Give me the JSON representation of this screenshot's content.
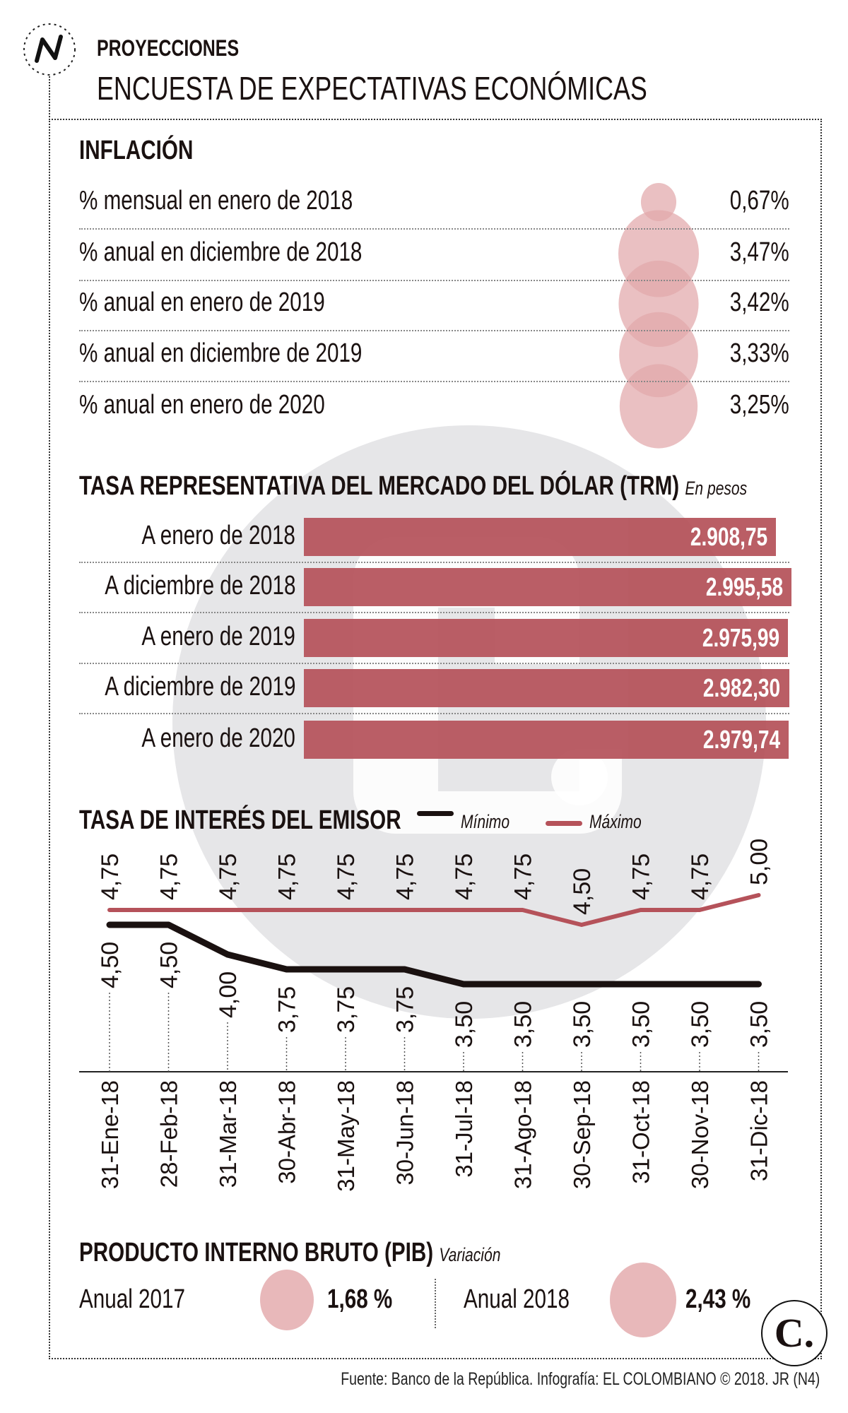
{
  "header": {
    "kicker": "PROYECCIONES",
    "title": "ENCUESTA DE EXPECTATIVAS ECONÓMICAS",
    "logo_icon": "n-logo-icon"
  },
  "colors": {
    "bubble": "#e2a7aa",
    "bar": "#b5525a",
    "max_line": "#b5525a",
    "min_line": "#1a1110",
    "watermark": "#e6e6e8"
  },
  "inflation": {
    "title": "INFLACIÓN",
    "rows": [
      {
        "label": "% mensual en enero de 2018",
        "value": 0.67,
        "display": "0,67%"
      },
      {
        "label": "% anual en diciembre de 2018",
        "value": 3.47,
        "display": "3,47%"
      },
      {
        "label": "% anual en enero de 2019",
        "value": 3.42,
        "display": "3,42%"
      },
      {
        "label": "% anual en diciembre de 2019",
        "value": 3.33,
        "display": "3,33%"
      },
      {
        "label": "% anual en enero de 2020",
        "value": 3.25,
        "display": "3,25%"
      }
    ]
  },
  "trm": {
    "title": "TASA REPRESENTATIVA DEL MERCADO DEL DÓLAR (TRM)",
    "unit": "En pesos",
    "rows": [
      {
        "label": "A enero de 2018",
        "value": 2908.75,
        "display": "2.908,75"
      },
      {
        "label": "A diciembre de 2018",
        "value": 2995.58,
        "display": "2.995,58"
      },
      {
        "label": "A enero de 2019",
        "value": 2975.99,
        "display": "2.975,99"
      },
      {
        "label": "A diciembre de 2019",
        "value": 2982.3,
        "display": "2.982,30"
      },
      {
        "label": "A enero de 2020",
        "value": 2979.74,
        "display": "2.979,74"
      }
    ]
  },
  "chart_data": {
    "type": "line",
    "title": "TASA DE INTERÉS DEL EMISOR",
    "categories": [
      "31-Ene-18",
      "28-Feb-18",
      "31-Mar-18",
      "30-Abr-18",
      "31-May-18",
      "30-Jun-18",
      "31-Jul-18",
      "31-Ago-18",
      "30-Sep-18",
      "31-Oct-18",
      "30-Nov-18",
      "31-Dic-18"
    ],
    "series": [
      {
        "name": "Mínimo",
        "color": "#1a1110",
        "values": [
          4.5,
          4.5,
          4.0,
          3.75,
          3.75,
          3.75,
          3.5,
          3.5,
          3.5,
          3.5,
          3.5,
          3.5
        ],
        "labels": [
          "4,50",
          "4,50",
          "4,00",
          "3,75",
          "3,75",
          "3,75",
          "3,50",
          "3,50",
          "3,50",
          "3,50",
          "3,50",
          "3,50"
        ]
      },
      {
        "name": "Máximo",
        "color": "#b5525a",
        "values": [
          4.75,
          4.75,
          4.75,
          4.75,
          4.75,
          4.75,
          4.75,
          4.75,
          4.5,
          4.75,
          4.75,
          5.0
        ],
        "labels": [
          "4,75",
          "4,75",
          "4,75",
          "4,75",
          "4,75",
          "4,75",
          "4,75",
          "4,75",
          "4,50",
          "4,75",
          "4,75",
          "5,00"
        ]
      }
    ],
    "legend": "top",
    "grid": false
  },
  "pib": {
    "title": "PRODUCTO INTERNO BRUTO (PIB)",
    "unit": "Variación",
    "items": [
      {
        "label": "Anual 2017",
        "value": 1.68,
        "display": "1,68 %"
      },
      {
        "label": "Anual 2018",
        "value": 2.43,
        "display": "2,43 %"
      }
    ]
  },
  "footer": "Fuente: Banco de la República. Infografía: EL COLOMBIANO © 2018. JR (N4)",
  "brand_logo": "C."
}
